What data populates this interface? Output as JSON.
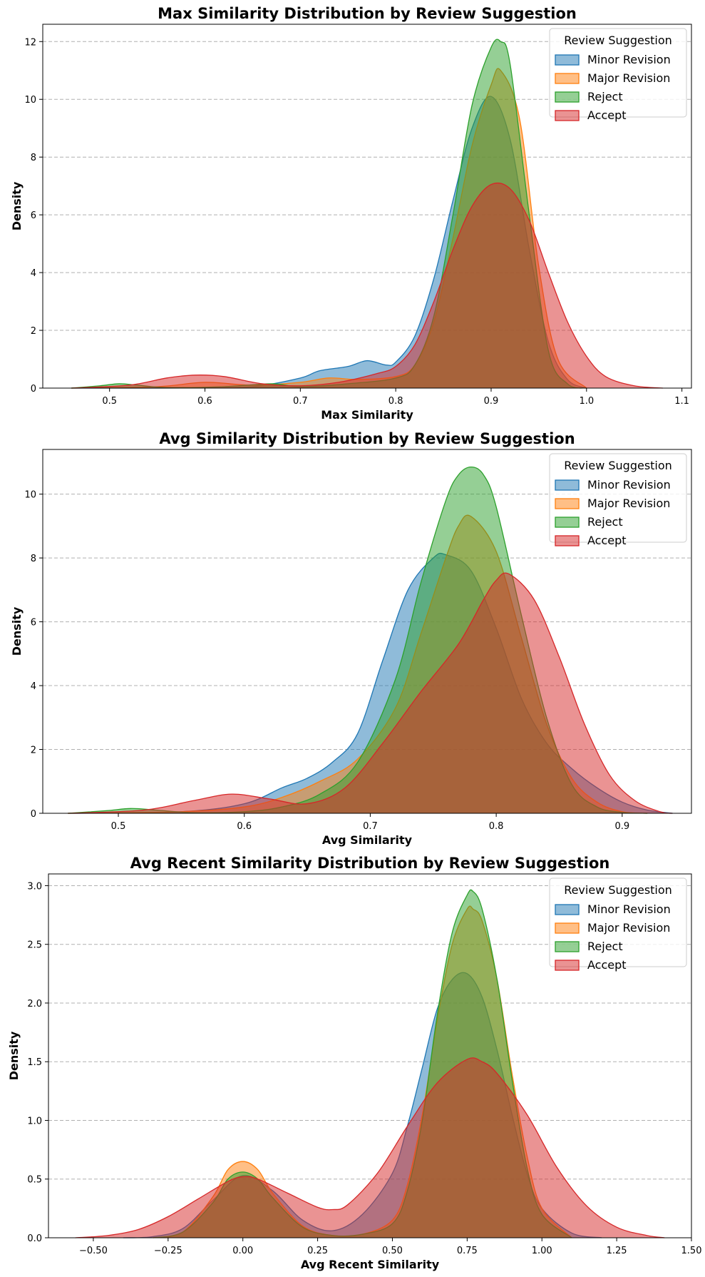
{
  "chart_data": [
    {
      "type": "area",
      "title": "Max Similarity Distribution by Review Suggestion",
      "xlabel": "Max Similarity",
      "ylabel": "Density",
      "xlim": [
        0.43,
        1.11
      ],
      "ylim": [
        0,
        12.6
      ],
      "xticks": [
        0.5,
        0.6,
        0.7,
        0.8,
        0.9,
        1.0,
        1.1
      ],
      "xtick_labels": [
        "0.5",
        "0.6",
        "0.7",
        "0.8",
        "0.9",
        "1.0",
        "1.1"
      ],
      "yticks": [
        0,
        2,
        4,
        6,
        8,
        10,
        12
      ],
      "ytick_labels": [
        "0",
        "2",
        "4",
        "6",
        "8",
        "10",
        "12"
      ],
      "grid": "y-dashed",
      "legend_title": "Review Suggestion",
      "legend_position": "top-right",
      "series": [
        {
          "name": "Minor Revision",
          "color": "#1f77b4",
          "x": [
            0.46,
            0.5,
            0.55,
            0.6,
            0.65,
            0.7,
            0.72,
            0.75,
            0.77,
            0.79,
            0.8,
            0.82,
            0.84,
            0.86,
            0.88,
            0.9,
            0.92,
            0.94,
            0.96,
            0.98,
            1.0
          ],
          "y": [
            0,
            0,
            0,
            0.01,
            0.05,
            0.35,
            0.6,
            0.75,
            0.95,
            0.8,
            0.9,
            1.8,
            3.8,
            6.5,
            9.0,
            10.1,
            8.6,
            4.8,
            1.6,
            0.3,
            0
          ]
        },
        {
          "name": "Major Revision",
          "color": "#ff7f0e",
          "x": [
            0.46,
            0.55,
            0.6,
            0.65,
            0.7,
            0.73,
            0.76,
            0.8,
            0.82,
            0.84,
            0.86,
            0.88,
            0.9,
            0.91,
            0.93,
            0.95,
            0.97,
            1.0
          ],
          "y": [
            0,
            0.05,
            0.2,
            0.1,
            0.2,
            0.35,
            0.3,
            0.4,
            0.8,
            2.3,
            5.2,
            8.4,
            10.5,
            11.0,
            9.3,
            4.2,
            1.0,
            0
          ]
        },
        {
          "name": "Reject",
          "color": "#2ca02c",
          "x": [
            0.46,
            0.49,
            0.51,
            0.53,
            0.56,
            0.62,
            0.67,
            0.7,
            0.75,
            0.8,
            0.82,
            0.84,
            0.86,
            0.88,
            0.9,
            0.91,
            0.92,
            0.94,
            0.96,
            0.98,
            1.0
          ],
          "y": [
            0,
            0.08,
            0.15,
            0.1,
            0.02,
            0.05,
            0.15,
            0.05,
            0.15,
            0.35,
            0.8,
            2.5,
            6.0,
            9.8,
            11.8,
            12.0,
            11.2,
            6.0,
            1.3,
            0.15,
            0
          ]
        },
        {
          "name": "Accept",
          "color": "#d62728",
          "x": [
            0.46,
            0.52,
            0.56,
            0.59,
            0.62,
            0.66,
            0.7,
            0.74,
            0.78,
            0.8,
            0.82,
            0.84,
            0.86,
            0.88,
            0.9,
            0.92,
            0.94,
            0.96,
            0.98,
            1.0,
            1.02,
            1.05,
            1.08
          ],
          "y": [
            0,
            0.1,
            0.35,
            0.45,
            0.4,
            0.15,
            0.08,
            0.2,
            0.5,
            0.75,
            1.5,
            3.0,
            4.8,
            6.3,
            7.05,
            6.9,
            5.8,
            4.0,
            2.3,
            1.1,
            0.4,
            0.08,
            0
          ]
        }
      ]
    },
    {
      "type": "area",
      "title": "Avg Similarity Distribution by Review Suggestion",
      "xlabel": "Avg Similarity",
      "ylabel": "Density",
      "xlim": [
        0.44,
        0.955
      ],
      "ylim": [
        0,
        11.4
      ],
      "xticks": [
        0.5,
        0.6,
        0.7,
        0.8,
        0.9
      ],
      "xtick_labels": [
        "0.5",
        "0.6",
        "0.7",
        "0.8",
        "0.9"
      ],
      "yticks": [
        0,
        2,
        4,
        6,
        8,
        10
      ],
      "ytick_labels": [
        "0",
        "2",
        "4",
        "6",
        "8",
        "10"
      ],
      "grid": "y-dashed",
      "legend_title": "Review Suggestion",
      "legend_position": "top-right",
      "series": [
        {
          "name": "Minor Revision",
          "color": "#1f77b4",
          "x": [
            0.46,
            0.55,
            0.6,
            0.63,
            0.65,
            0.67,
            0.69,
            0.71,
            0.73,
            0.75,
            0.76,
            0.78,
            0.8,
            0.82,
            0.84,
            0.86,
            0.88,
            0.9,
            0.92,
            0.94
          ],
          "y": [
            0,
            0.05,
            0.3,
            0.8,
            1.1,
            1.6,
            2.5,
            4.8,
            7.0,
            8.0,
            8.1,
            7.6,
            5.8,
            3.6,
            2.2,
            1.4,
            0.8,
            0.35,
            0.1,
            0
          ]
        },
        {
          "name": "Major Revision",
          "color": "#ff7f0e",
          "x": [
            0.46,
            0.55,
            0.6,
            0.63,
            0.66,
            0.69,
            0.72,
            0.74,
            0.76,
            0.77,
            0.78,
            0.8,
            0.82,
            0.84,
            0.86,
            0.88,
            0.9,
            0.92
          ],
          "y": [
            0,
            0.05,
            0.2,
            0.5,
            1.0,
            1.7,
            3.3,
            5.6,
            8.0,
            9.0,
            9.3,
            8.2,
            5.5,
            2.8,
            1.1,
            0.35,
            0.05,
            0
          ]
        },
        {
          "name": "Reject",
          "color": "#2ca02c",
          "x": [
            0.46,
            0.49,
            0.51,
            0.53,
            0.56,
            0.6,
            0.63,
            0.66,
            0.69,
            0.72,
            0.74,
            0.76,
            0.77,
            0.78,
            0.79,
            0.8,
            0.82,
            0.84,
            0.86,
            0.88,
            0.9,
            0.92
          ],
          "y": [
            0,
            0.08,
            0.15,
            0.1,
            0.02,
            0.05,
            0.2,
            0.6,
            1.6,
            4.2,
            7.2,
            9.8,
            10.6,
            10.85,
            10.6,
            9.6,
            6.2,
            3.0,
            0.9,
            0.2,
            0.03,
            0
          ]
        },
        {
          "name": "Accept",
          "color": "#d62728",
          "x": [
            0.46,
            0.52,
            0.56,
            0.59,
            0.62,
            0.65,
            0.68,
            0.71,
            0.74,
            0.77,
            0.79,
            0.8,
            0.81,
            0.83,
            0.85,
            0.87,
            0.89,
            0.91,
            0.93,
            0.94
          ],
          "y": [
            0,
            0.1,
            0.4,
            0.6,
            0.45,
            0.3,
            0.8,
            2.2,
            3.8,
            5.3,
            6.7,
            7.3,
            7.5,
            6.7,
            4.9,
            2.8,
            1.2,
            0.4,
            0.05,
            0
          ]
        }
      ]
    },
    {
      "type": "area",
      "title": "Avg Recent Similarity Distribution by Review Suggestion",
      "xlabel": "Avg Recent Similarity",
      "ylabel": "Density",
      "xlim": [
        -0.65,
        1.5
      ],
      "ylim": [
        0,
        3.1
      ],
      "xticks": [
        -0.5,
        -0.25,
        0.0,
        0.25,
        0.5,
        0.75,
        1.0,
        1.25,
        1.5
      ],
      "xtick_labels": [
        "−0.50",
        "−0.25",
        "0.00",
        "0.25",
        "0.50",
        "0.75",
        "1.00",
        "1.25",
        "1.50"
      ],
      "yticks": [
        0.0,
        0.5,
        1.0,
        1.5,
        2.0,
        2.5,
        3.0
      ],
      "ytick_labels": [
        "0.0",
        "0.5",
        "1.0",
        "1.5",
        "2.0",
        "2.5",
        "3.0"
      ],
      "grid": "y-dashed",
      "legend_title": "Review Suggestion",
      "legend_position": "top-right",
      "series": [
        {
          "name": "Minor Revision",
          "color": "#1f77b4",
          "x": [
            -0.4,
            -0.3,
            -0.2,
            -0.1,
            0.0,
            0.1,
            0.2,
            0.3,
            0.4,
            0.5,
            0.55,
            0.6,
            0.65,
            0.7,
            0.75,
            0.8,
            0.85,
            0.9,
            0.95,
            1.0,
            1.1,
            1.2
          ],
          "y": [
            0,
            0.01,
            0.08,
            0.32,
            0.53,
            0.4,
            0.15,
            0.06,
            0.2,
            0.55,
            0.95,
            1.45,
            1.95,
            2.2,
            2.25,
            2.05,
            1.6,
            1.05,
            0.55,
            0.25,
            0.04,
            0
          ]
        },
        {
          "name": "Major Revision",
          "color": "#ff7f0e",
          "x": [
            -0.3,
            -0.2,
            -0.1,
            -0.05,
            0.0,
            0.05,
            0.1,
            0.2,
            0.3,
            0.4,
            0.5,
            0.55,
            0.6,
            0.65,
            0.7,
            0.75,
            0.77,
            0.8,
            0.85,
            0.9,
            0.95,
            1.0,
            1.1
          ],
          "y": [
            0,
            0.05,
            0.35,
            0.58,
            0.65,
            0.58,
            0.38,
            0.1,
            0.02,
            0.03,
            0.15,
            0.45,
            1.05,
            1.85,
            2.5,
            2.8,
            2.8,
            2.7,
            2.2,
            1.4,
            0.7,
            0.25,
            0
          ]
        },
        {
          "name": "Reject",
          "color": "#2ca02c",
          "x": [
            -0.3,
            -0.2,
            -0.1,
            -0.05,
            0.0,
            0.05,
            0.1,
            0.2,
            0.3,
            0.4,
            0.5,
            0.55,
            0.6,
            0.65,
            0.7,
            0.75,
            0.77,
            0.8,
            0.85,
            0.9,
            0.95,
            1.0,
            1.1
          ],
          "y": [
            0,
            0.05,
            0.3,
            0.5,
            0.56,
            0.5,
            0.34,
            0.09,
            0.02,
            0.03,
            0.12,
            0.4,
            1.0,
            1.9,
            2.6,
            2.92,
            2.95,
            2.8,
            2.2,
            1.35,
            0.6,
            0.2,
            0
          ]
        },
        {
          "name": "Accept",
          "color": "#d62728",
          "x": [
            -0.56,
            -0.45,
            -0.35,
            -0.25,
            -0.15,
            -0.05,
            0.0,
            0.05,
            0.15,
            0.25,
            0.3,
            0.35,
            0.45,
            0.55,
            0.65,
            0.75,
            0.8,
            0.85,
            0.95,
            1.05,
            1.15,
            1.25,
            1.35,
            1.41
          ],
          "y": [
            0,
            0.02,
            0.07,
            0.18,
            0.33,
            0.48,
            0.52,
            0.5,
            0.38,
            0.26,
            0.24,
            0.28,
            0.55,
            0.95,
            1.32,
            1.52,
            1.5,
            1.4,
            1.05,
            0.6,
            0.27,
            0.09,
            0.02,
            0
          ]
        }
      ]
    }
  ]
}
